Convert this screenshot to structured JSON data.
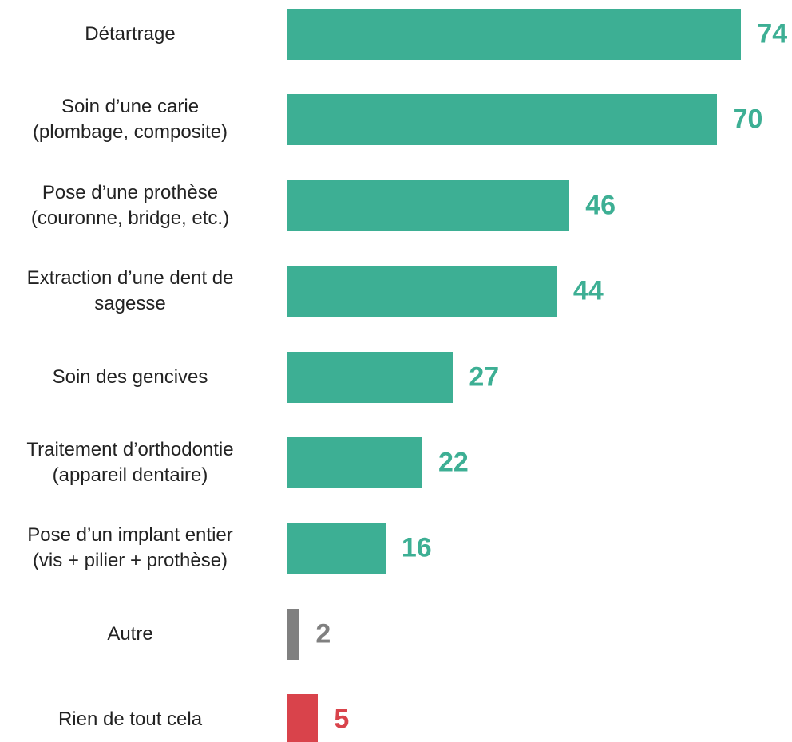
{
  "chart_data": {
    "type": "bar",
    "orientation": "horizontal",
    "categories": [
      "Détartrage",
      "Soin d’une carie\n(plombage, composite)",
      "Pose d’une prothèse\n(couronne, bridge, etc.)",
      "Extraction d’une dent de\nsagesse",
      "Soin des gencives",
      "Traitement d’orthodontie\n(appareil dentaire)",
      "Pose d’un implant entier\n(vis + pilier + prothèse)",
      "Autre",
      "Rien de tout cela"
    ],
    "values": [
      74,
      70,
      46,
      44,
      27,
      22,
      16,
      2,
      5
    ],
    "colors": [
      "#3daf94",
      "#3daf94",
      "#3daf94",
      "#3daf94",
      "#3daf94",
      "#3daf94",
      "#3daf94",
      "#808080",
      "#d9434b"
    ]
  }
}
